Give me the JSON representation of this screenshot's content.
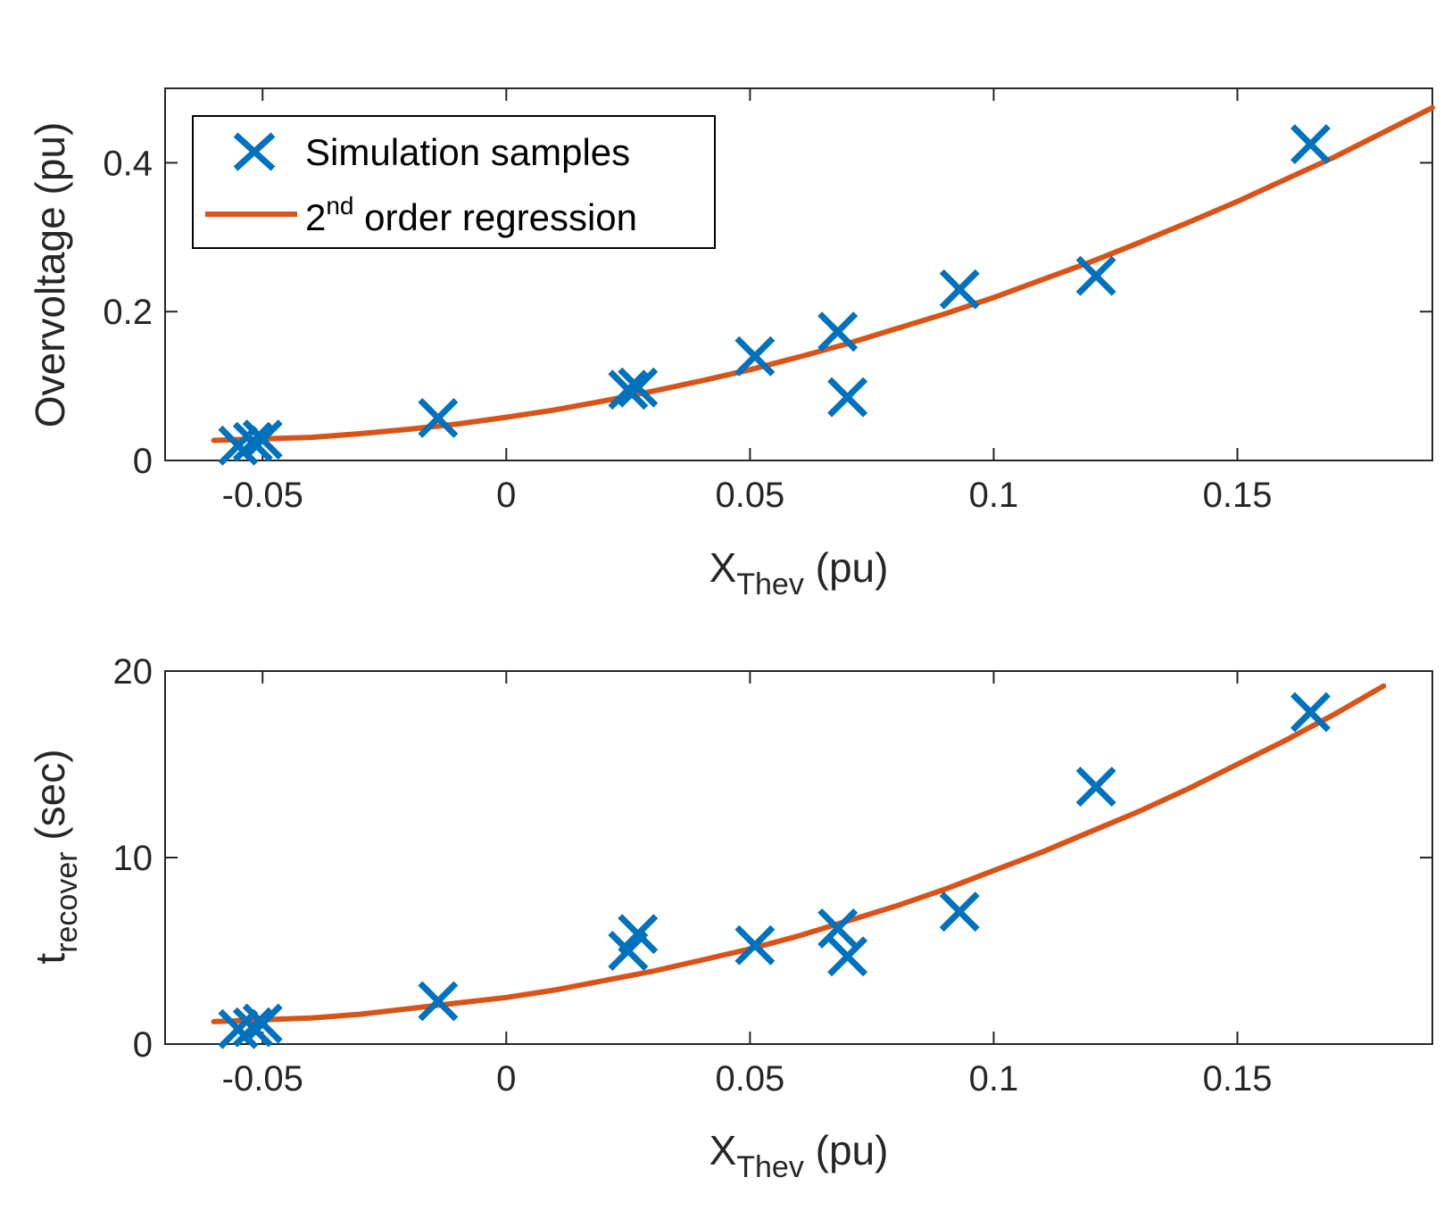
{
  "chart_data": [
    {
      "type": "scatter",
      "xlabel": {
        "main": "X",
        "sub": "Thev",
        "unit": " (pu)"
      },
      "ylabel": {
        "main": "Overvoltage (pu)"
      },
      "xlim": [
        -0.07,
        0.19
      ],
      "ylim": [
        0,
        0.5
      ],
      "xticks": [
        -0.05,
        0,
        0.05,
        0.1,
        0.15
      ],
      "xtick_labels": [
        "-0.05",
        "0",
        "0.05",
        "0.1",
        "0.15"
      ],
      "yticks": [
        0,
        0.2,
        0.4
      ],
      "ytick_labels": [
        "0",
        "0.2",
        "0.4"
      ],
      "legend": {
        "placement": "top-left",
        "entries": [
          {
            "label": "Simulation samples"
          },
          {
            "label_pre": "2",
            "label_sup": "nd",
            "label_post": " order regression"
          }
        ]
      },
      "series": [
        {
          "kind": "markers",
          "color": "#0072BD",
          "points": [
            [
              -0.055,
              0.02
            ],
            [
              -0.052,
              0.025
            ],
            [
              -0.05,
              0.028
            ],
            [
              -0.014,
              0.057
            ],
            [
              0.025,
              0.095
            ],
            [
              0.027,
              0.098
            ],
            [
              0.051,
              0.14
            ],
            [
              0.068,
              0.173
            ],
            [
              0.07,
              0.085
            ],
            [
              0.093,
              0.23
            ],
            [
              0.121,
              0.248
            ],
            [
              0.165,
              0.425
            ]
          ]
        },
        {
          "kind": "line",
          "color": "#D95319",
          "x": [
            -0.06,
            -0.05,
            -0.04,
            -0.03,
            -0.02,
            -0.01,
            0.0,
            0.01,
            0.02,
            0.03,
            0.04,
            0.05,
            0.06,
            0.07,
            0.08,
            0.09,
            0.1,
            0.11,
            0.12,
            0.13,
            0.14,
            0.15,
            0.16,
            0.17,
            0.18,
            0.19
          ],
          "y": [
            0.027,
            0.029,
            0.031,
            0.036,
            0.042,
            0.049,
            0.058,
            0.068,
            0.08,
            0.093,
            0.107,
            0.122,
            0.139,
            0.157,
            0.177,
            0.197,
            0.219,
            0.243,
            0.267,
            0.293,
            0.32,
            0.348,
            0.378,
            0.408,
            0.441,
            0.474
          ]
        }
      ]
    },
    {
      "type": "scatter",
      "xlabel": {
        "main": "X",
        "sub": "Thev",
        "unit": " (pu)"
      },
      "ylabel": {
        "main": "t",
        "sub": "recover",
        "unit": " (sec)"
      },
      "xlim": [
        -0.07,
        0.19
      ],
      "ylim": [
        0,
        20
      ],
      "xticks": [
        -0.05,
        0,
        0.05,
        0.1,
        0.15
      ],
      "xtick_labels": [
        "-0.05",
        "0",
        "0.05",
        "0.1",
        "0.15"
      ],
      "yticks": [
        0,
        10,
        20
      ],
      "ytick_labels": [
        "0",
        "10",
        "20"
      ],
      "series": [
        {
          "kind": "markers",
          "color": "#0072BD",
          "points": [
            [
              -0.055,
              0.8
            ],
            [
              -0.052,
              0.9
            ],
            [
              -0.05,
              1.1
            ],
            [
              -0.014,
              2.3
            ],
            [
              0.025,
              5.0
            ],
            [
              0.027,
              5.9
            ],
            [
              0.051,
              5.3
            ],
            [
              0.068,
              6.2
            ],
            [
              0.07,
              4.7
            ],
            [
              0.093,
              7.1
            ],
            [
              0.121,
              13.8
            ],
            [
              0.165,
              17.8
            ]
          ]
        },
        {
          "kind": "line",
          "color": "#D95319",
          "x": [
            -0.06,
            -0.05,
            -0.04,
            -0.03,
            -0.02,
            -0.01,
            0.0,
            0.01,
            0.02,
            0.03,
            0.04,
            0.05,
            0.06,
            0.07,
            0.08,
            0.09,
            0.1,
            0.11,
            0.12,
            0.13,
            0.14,
            0.15,
            0.16,
            0.17,
            0.18
          ],
          "y": [
            1.2,
            1.3,
            1.4,
            1.6,
            1.9,
            2.2,
            2.5,
            2.9,
            3.4,
            3.9,
            4.5,
            5.1,
            5.8,
            6.6,
            7.4,
            8.3,
            9.3,
            10.3,
            11.4,
            12.5,
            13.7,
            15.0,
            16.3,
            17.7,
            19.2
          ]
        }
      ]
    }
  ]
}
